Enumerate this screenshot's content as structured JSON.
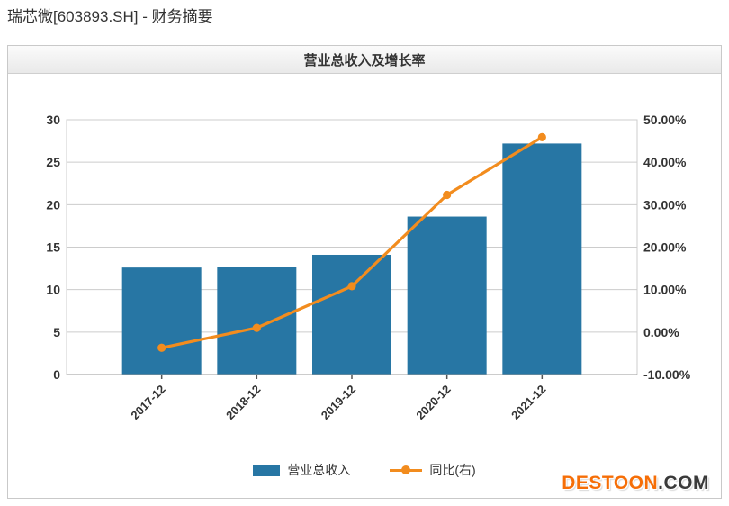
{
  "page": {
    "title": "瑞芯微[603893.SH] - 财务摘要"
  },
  "panel": {
    "header": "营业总收入及增长率"
  },
  "chart_data": {
    "type": "bar",
    "title": "营业总收入及增长率",
    "categories": [
      "2017-12",
      "2018-12",
      "2019-12",
      "2020-12",
      "2021-12"
    ],
    "series": [
      {
        "name": "营业总收入",
        "type": "bar",
        "axis": "left",
        "values": [
          12.6,
          12.7,
          14.1,
          18.6,
          27.2
        ],
        "color": "#2776a4"
      },
      {
        "name": "同比(右)",
        "type": "line",
        "axis": "right",
        "values": [
          -3.7,
          1.0,
          10.8,
          32.3,
          45.9
        ],
        "color": "#f28c1e"
      }
    ],
    "left_axis": {
      "min": 0,
      "max": 30,
      "ticks": [
        "0",
        "5",
        "10",
        "15",
        "20",
        "25",
        "30"
      ]
    },
    "right_axis": {
      "min": -10,
      "max": 50,
      "ticks": [
        "-10.00%",
        "0.00%",
        "10.00%",
        "20.00%",
        "30.00%",
        "40.00%",
        "50.00%"
      ]
    },
    "grid": true,
    "legend_position": "bottom",
    "colors": {
      "grid_line": "#cccccc",
      "plot_border": "#cccccc",
      "axis_line": "#999999",
      "tick_mark": "#555555",
      "axis_label": "#333333"
    }
  },
  "watermark": {
    "brand": "DESTOON",
    "suffix": ".COM"
  }
}
